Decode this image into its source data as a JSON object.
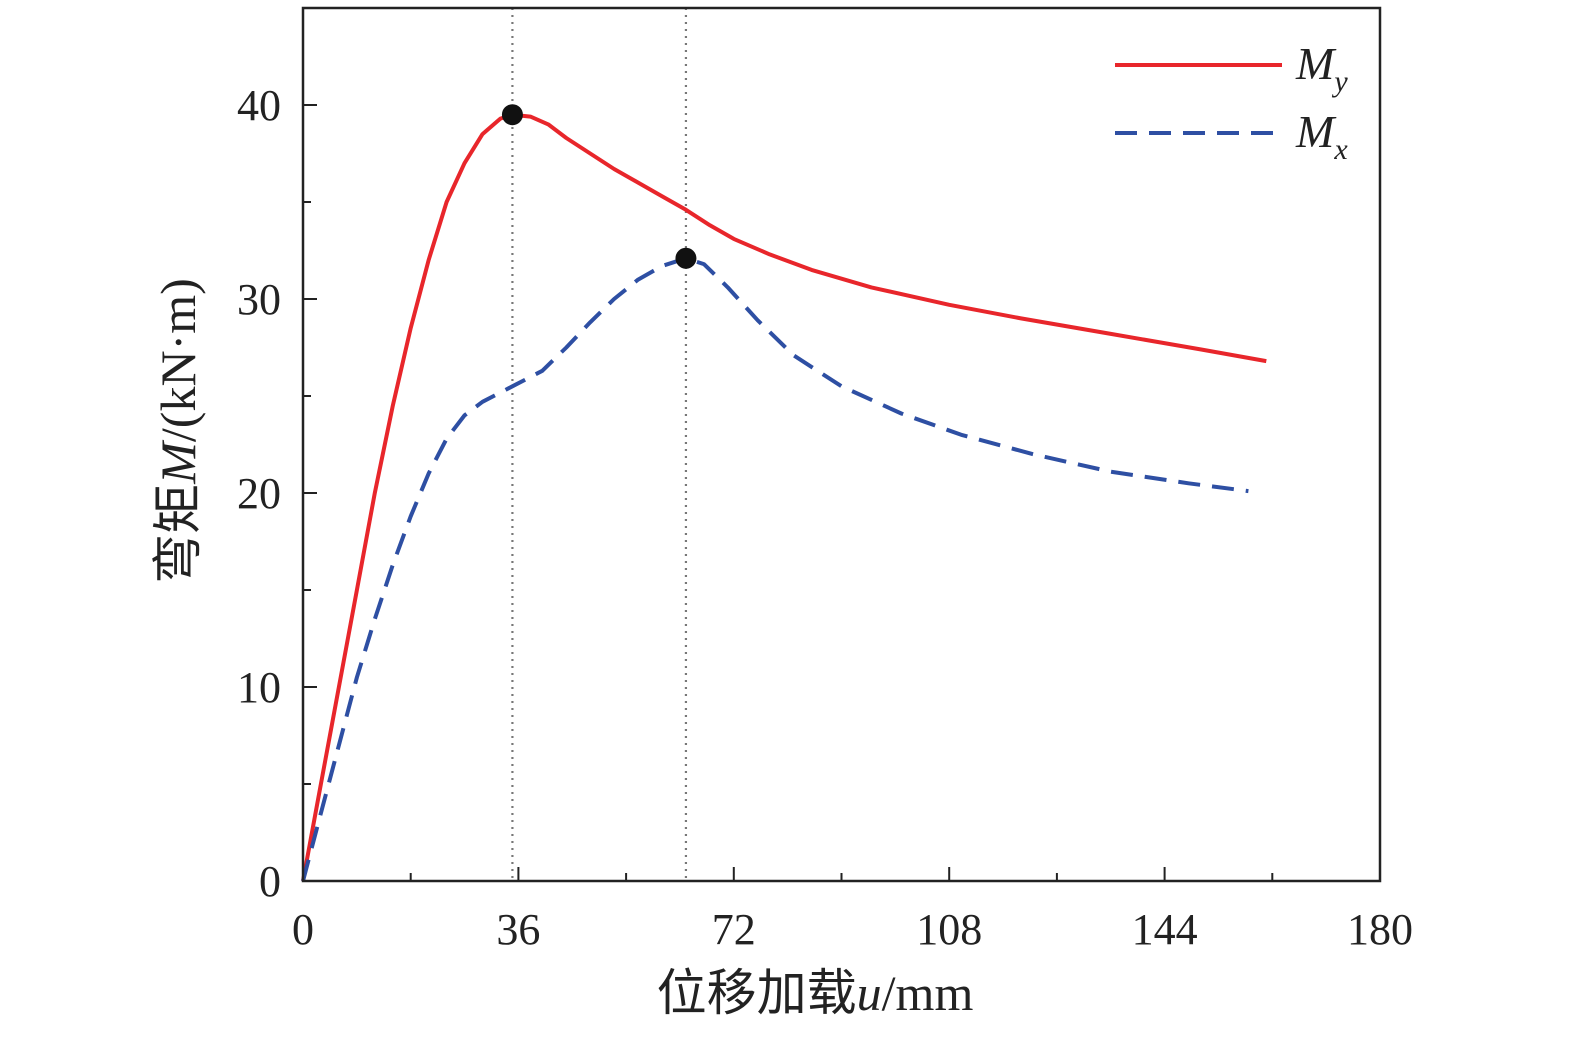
{
  "chart_data": {
    "type": "line",
    "xlabel": {
      "prefix": "位移加载",
      "var": "u",
      "unit": "/mm"
    },
    "ylabel": {
      "prefix": "弯矩",
      "var": "M",
      "unit": "/(kN·m)"
    },
    "xlim": [
      0,
      180
    ],
    "ylim": [
      0,
      45
    ],
    "xticks": [
      0,
      36,
      72,
      108,
      144,
      180
    ],
    "yticks": [
      0,
      10,
      20,
      30,
      40
    ],
    "x_minor_step": 18,
    "y_minor_step": 5,
    "grid": false,
    "legend_position": "top-right",
    "reference_lines_x": [
      35,
      64
    ],
    "series": [
      {
        "name": "M_y",
        "label_main": "M",
        "label_sub": "y",
        "color": "#e8262b",
        "style": "solid",
        "points": [
          [
            0,
            0
          ],
          [
            3,
            5
          ],
          [
            6,
            10
          ],
          [
            9,
            15
          ],
          [
            12,
            20
          ],
          [
            15,
            24.5
          ],
          [
            18,
            28.5
          ],
          [
            21,
            32
          ],
          [
            24,
            35
          ],
          [
            27,
            37
          ],
          [
            30,
            38.5
          ],
          [
            33,
            39.3
          ],
          [
            35,
            39.5
          ],
          [
            38,
            39.4
          ],
          [
            41,
            39
          ],
          [
            44,
            38.3
          ],
          [
            48,
            37.5
          ],
          [
            52,
            36.7
          ],
          [
            56,
            36
          ],
          [
            60,
            35.3
          ],
          [
            64,
            34.6
          ],
          [
            68,
            33.8
          ],
          [
            72,
            33.1
          ],
          [
            78,
            32.3
          ],
          [
            85,
            31.5
          ],
          [
            95,
            30.6
          ],
          [
            108,
            29.7
          ],
          [
            120,
            29
          ],
          [
            135,
            28.2
          ],
          [
            150,
            27.4
          ],
          [
            161,
            26.8
          ]
        ]
      },
      {
        "name": "M_x",
        "label_main": "M",
        "label_sub": "x",
        "color": "#2e4fa3",
        "style": "dashed",
        "points": [
          [
            0,
            0
          ],
          [
            3,
            3.5
          ],
          [
            6,
            7
          ],
          [
            9,
            10.5
          ],
          [
            12,
            13.5
          ],
          [
            15,
            16.3
          ],
          [
            18,
            18.8
          ],
          [
            21,
            21
          ],
          [
            24,
            22.8
          ],
          [
            27,
            24
          ],
          [
            30,
            24.7
          ],
          [
            35,
            25.5
          ],
          [
            40,
            26.3
          ],
          [
            44,
            27.5
          ],
          [
            48,
            28.8
          ],
          [
            52,
            30
          ],
          [
            56,
            31
          ],
          [
            60,
            31.7
          ],
          [
            64,
            32.1
          ],
          [
            67,
            31.8
          ],
          [
            71,
            30.6
          ],
          [
            76,
            28.9
          ],
          [
            82,
            27.1
          ],
          [
            90,
            25.5
          ],
          [
            100,
            24.1
          ],
          [
            110,
            23
          ],
          [
            122,
            22
          ],
          [
            135,
            21.1
          ],
          [
            148,
            20.5
          ],
          [
            158,
            20.1
          ]
        ]
      }
    ],
    "peak_points": [
      [
        35,
        39.5
      ],
      [
        64,
        32.1
      ]
    ]
  }
}
